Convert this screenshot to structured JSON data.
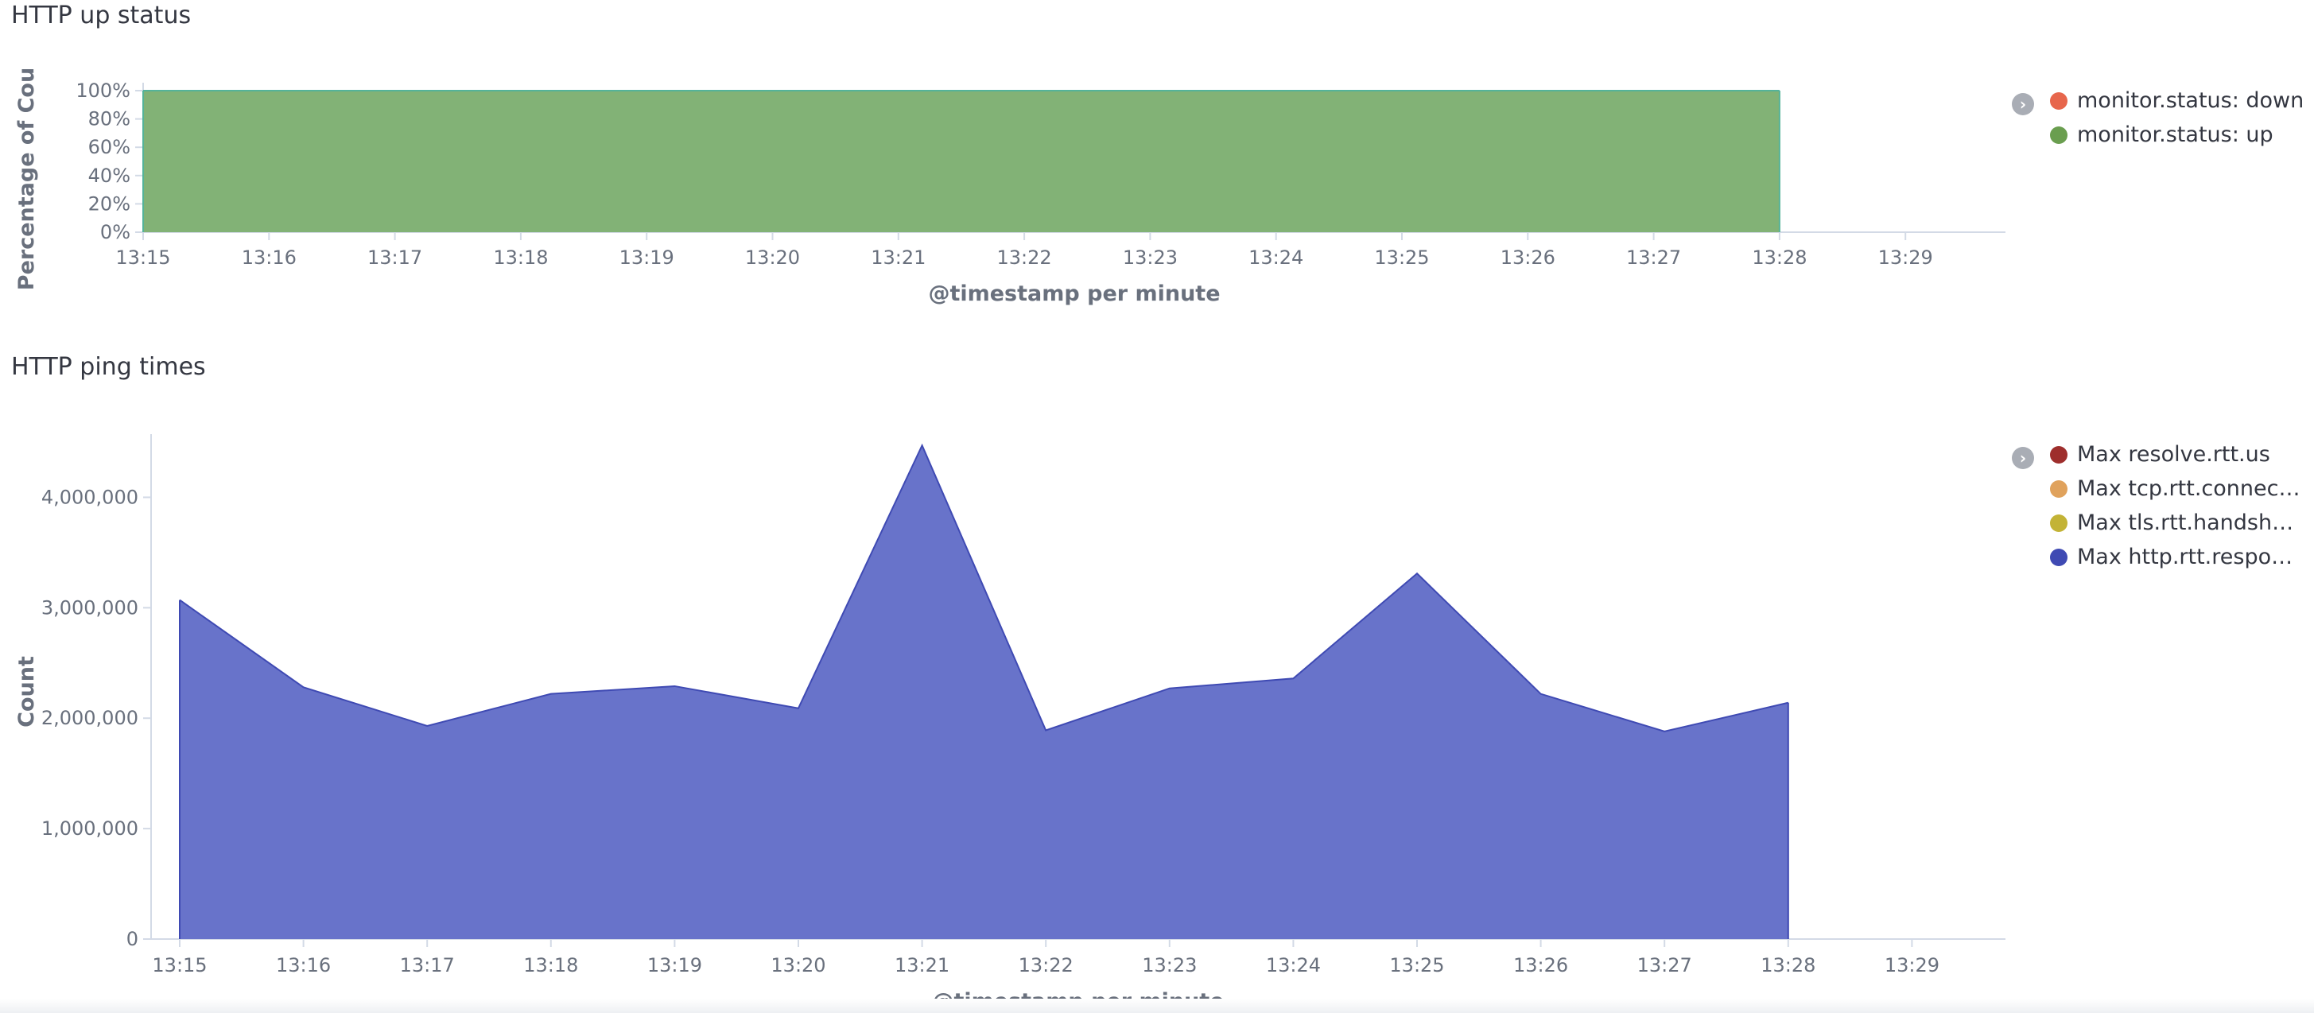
{
  "chart_data": [
    {
      "type": "area",
      "title": "HTTP up status",
      "xlabel": "@timestamp per minute",
      "ylabel": "Percentage of Count",
      "ylabel_display": "Percentage of Cou",
      "x_ticks": [
        "13:15",
        "13:16",
        "13:17",
        "13:18",
        "13:19",
        "13:20",
        "13:21",
        "13:22",
        "13:23",
        "13:24",
        "13:25",
        "13:26",
        "13:27",
        "13:28",
        "13:29"
      ],
      "y_ticks": [
        "0%",
        "20%",
        "40%",
        "60%",
        "80%",
        "100%"
      ],
      "ylim": [
        0,
        100
      ],
      "stacked_percentage": true,
      "x": [
        "13:15",
        "13:16",
        "13:17",
        "13:18",
        "13:19",
        "13:20",
        "13:21",
        "13:22",
        "13:23",
        "13:24",
        "13:25",
        "13:26",
        "13:27",
        "13:28"
      ],
      "series": [
        {
          "name": "monitor.status: down",
          "color": "#e7664c",
          "values": [
            0,
            0,
            0,
            0,
            0,
            0,
            0,
            0,
            0,
            0,
            0,
            0,
            0,
            0
          ]
        },
        {
          "name": "monitor.status: up",
          "color": "#54b399",
          "fill": "#82b276",
          "values": [
            100,
            100,
            100,
            100,
            100,
            100,
            100,
            100,
            100,
            100,
            100,
            100,
            100,
            100
          ]
        }
      ],
      "legend": [
        {
          "label": "monitor.status: down",
          "color": "#e7664c"
        },
        {
          "label": "monitor.status: up",
          "color": "#6a9e4f"
        }
      ],
      "legend_position": "right",
      "grid": false
    },
    {
      "type": "area",
      "title": "HTTP ping times",
      "xlabel": "@timestamp per minute",
      "ylabel": "Count",
      "x_ticks": [
        "13:15",
        "13:16",
        "13:17",
        "13:18",
        "13:19",
        "13:20",
        "13:21",
        "13:22",
        "13:23",
        "13:24",
        "13:25",
        "13:26",
        "13:27",
        "13:28",
        "13:29"
      ],
      "y_ticks": [
        "0",
        "1,000,000",
        "2,000,000",
        "3,000,000",
        "4,000,000"
      ],
      "ylim": [
        0,
        4500000
      ],
      "x": [
        "13:15",
        "13:16",
        "13:17",
        "13:18",
        "13:19",
        "13:20",
        "13:21",
        "13:22",
        "13:23",
        "13:24",
        "13:25",
        "13:26",
        "13:27",
        "13:28"
      ],
      "series": [
        {
          "name": "Max http.rtt.response_header.us",
          "color": "#3f4ab3",
          "fill": "#6873ca",
          "values": [
            3070000,
            2280000,
            1930000,
            2220000,
            2290000,
            2090000,
            4470000,
            1890000,
            2270000,
            2360000,
            3310000,
            2220000,
            1880000,
            2140000
          ]
        }
      ],
      "legend": [
        {
          "label": "Max resolve.rtt.us",
          "color": "#9e2e2c"
        },
        {
          "label": "Max tcp.rtt.connect.us",
          "color": "#e0a25c"
        },
        {
          "label": "Max tls.rtt.handshake...",
          "color": "#c3b336"
        },
        {
          "label": "Max http.rtt.respons...",
          "color": "#3f4ab3"
        }
      ],
      "legend_position": "right",
      "grid": false
    }
  ]
}
